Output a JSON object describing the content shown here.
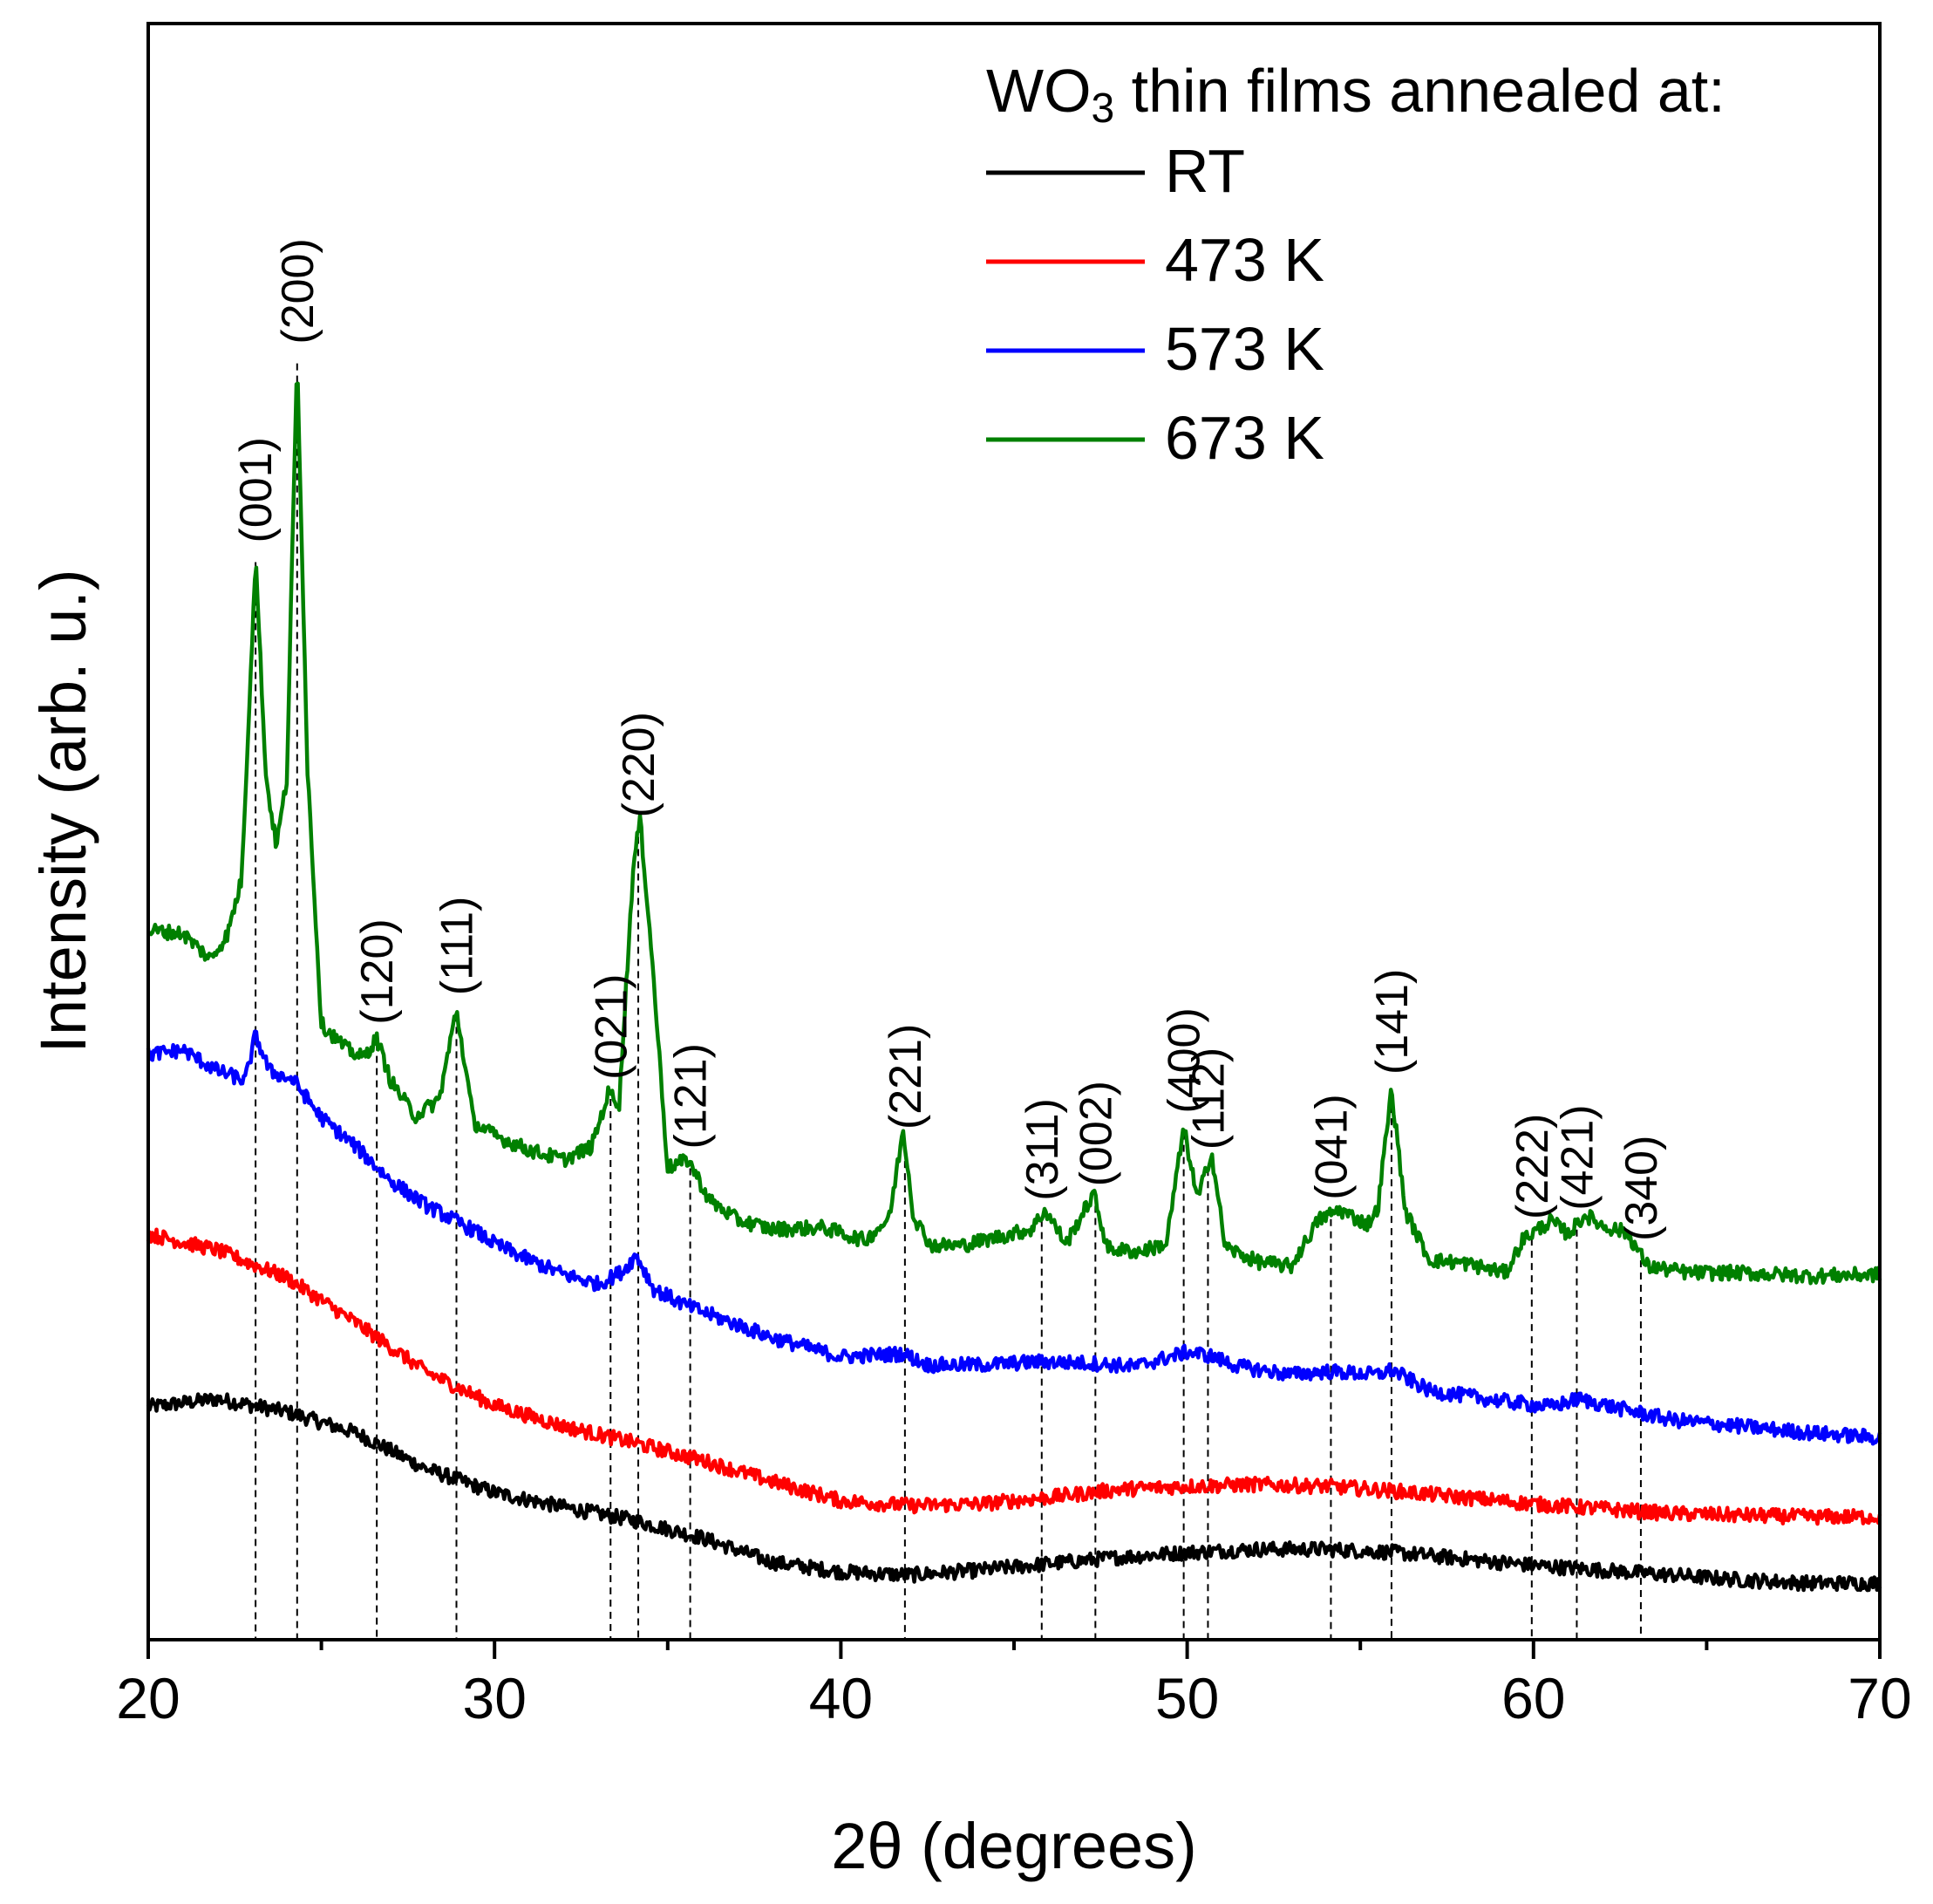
{
  "chart_data": {
    "type": "line",
    "title": "",
    "xlabel": "2θ (degrees)",
    "ylabel": "Intensity (arb. u.)",
    "xlim": [
      20,
      70
    ],
    "ylim": [
      0,
      100
    ],
    "x_ticks": [
      20,
      30,
      40,
      50,
      60,
      70
    ],
    "x_tick_labels": [
      "20",
      "30",
      "40",
      "50",
      "60",
      "70"
    ],
    "y_ticks_shown": false,
    "legend": {
      "title_main": "WO",
      "title_sub": "3",
      "title_rest": " thin films annealed at:",
      "position": "top-right"
    },
    "series": [
      {
        "name": "RT",
        "color": "#000000",
        "points": [
          [
            20,
            14.4
          ],
          [
            22,
            14.9
          ],
          [
            24,
            14.1
          ],
          [
            26,
            12.8
          ],
          [
            28,
            10.6
          ],
          [
            30,
            9.1
          ],
          [
            32,
            8.2
          ],
          [
            34,
            7.4
          ],
          [
            36,
            6.3
          ],
          [
            38,
            4.8
          ],
          [
            40,
            4.2
          ],
          [
            42,
            4.0
          ],
          [
            44,
            4.3
          ],
          [
            46,
            4.7
          ],
          [
            48,
            5.1
          ],
          [
            50,
            5.4
          ],
          [
            52,
            5.6
          ],
          [
            54,
            5.6
          ],
          [
            56,
            5.4
          ],
          [
            58,
            5.0
          ],
          [
            60,
            4.6
          ],
          [
            62,
            4.3
          ],
          [
            64,
            4.0
          ],
          [
            66,
            3.7
          ],
          [
            68,
            3.5
          ],
          [
            70,
            3.5
          ]
        ]
      },
      {
        "name": "473 K",
        "color": "#ff0000",
        "points": [
          [
            20,
            25.1
          ],
          [
            22,
            24.1
          ],
          [
            24,
            22.4
          ],
          [
            26,
            19.6
          ],
          [
            28,
            16.6
          ],
          [
            30,
            14.5
          ],
          [
            32,
            13.2
          ],
          [
            34,
            12.2
          ],
          [
            36,
            11.1
          ],
          [
            38,
            9.8
          ],
          [
            40,
            8.6
          ],
          [
            42,
            8.3
          ],
          [
            44,
            8.4
          ],
          [
            46,
            8.8
          ],
          [
            48,
            9.3
          ],
          [
            50,
            9.5
          ],
          [
            52,
            9.6
          ],
          [
            54,
            9.5
          ],
          [
            56,
            9.2
          ],
          [
            58,
            8.8
          ],
          [
            60,
            8.4
          ],
          [
            62,
            8.1
          ],
          [
            64,
            7.8
          ],
          [
            66,
            7.7
          ],
          [
            68,
            7.6
          ],
          [
            70,
            7.6
          ]
        ]
      },
      {
        "name": "573 K",
        "color": "#0000ff",
        "points": [
          [
            20,
            36.2
          ],
          [
            21,
            36.5
          ],
          [
            22,
            35.2
          ],
          [
            22.8,
            34.6
          ],
          [
            23.1,
            37.4
          ],
          [
            23.5,
            35.2
          ],
          [
            24.2,
            34.6
          ],
          [
            25,
            32.3
          ],
          [
            26,
            30.5
          ],
          [
            27,
            28.4
          ],
          [
            28,
            26.9
          ],
          [
            28.8,
            26.0
          ],
          [
            29.5,
            25.2
          ],
          [
            30,
            24.5
          ],
          [
            31,
            23.5
          ],
          [
            32,
            22.6
          ],
          [
            33,
            22.0
          ],
          [
            33.7,
            22.8
          ],
          [
            34.1,
            23.8
          ],
          [
            34.6,
            21.7
          ],
          [
            35.5,
            20.7
          ],
          [
            36.5,
            19.9
          ],
          [
            38,
            18.7
          ],
          [
            40,
            17.5
          ],
          [
            41.8,
            17.7
          ],
          [
            42.5,
            17.0
          ],
          [
            44,
            17.0
          ],
          [
            45.8,
            17.2
          ],
          [
            47.3,
            17.1
          ],
          [
            48.5,
            16.9
          ],
          [
            50,
            17.8
          ],
          [
            50.6,
            17.6
          ],
          [
            51.5,
            16.9
          ],
          [
            53,
            16.4
          ],
          [
            54,
            16.6
          ],
          [
            55.5,
            16.4
          ],
          [
            55.9,
            16.7
          ],
          [
            57,
            15.4
          ],
          [
            59,
            14.8
          ],
          [
            60.5,
            14.4
          ],
          [
            61.3,
            14.9
          ],
          [
            62.5,
            14.3
          ],
          [
            64,
            13.6
          ],
          [
            66,
            13.2
          ],
          [
            68,
            12.8
          ],
          [
            70,
            12.5
          ]
        ]
      },
      {
        "name": "673 K",
        "color": "#008000",
        "points": [
          [
            20,
            43.9
          ],
          [
            21,
            43.7
          ],
          [
            21.8,
            42.1
          ],
          [
            22.3,
            43.7
          ],
          [
            22.7,
            47.1
          ],
          [
            23.1,
            67.0
          ],
          [
            23.4,
            53.4
          ],
          [
            23.7,
            49.1
          ],
          [
            24.0,
            53.2
          ],
          [
            24.3,
            79.3
          ],
          [
            24.6,
            53.9
          ],
          [
            25.0,
            38.1
          ],
          [
            25.7,
            36.6
          ],
          [
            26.2,
            36.0
          ],
          [
            26.6,
            37.2
          ],
          [
            27.0,
            34.6
          ],
          [
            27.7,
            32.4
          ],
          [
            28.4,
            33.4
          ],
          [
            28.9,
            39.0
          ],
          [
            29.4,
            32.0
          ],
          [
            30,
            31.2
          ],
          [
            31,
            30.3
          ],
          [
            32,
            29.7
          ],
          [
            32.8,
            30.5
          ],
          [
            33.3,
            33.9
          ],
          [
            33.6,
            33.2
          ],
          [
            34.0,
            47.6
          ],
          [
            34.2,
            50.8
          ],
          [
            34.5,
            43.5
          ],
          [
            35.0,
            29.2
          ],
          [
            35.6,
            29.7
          ],
          [
            36.2,
            27.2
          ],
          [
            37,
            26.0
          ],
          [
            38,
            25.4
          ],
          [
            39.5,
            25.5
          ],
          [
            40.7,
            24.7
          ],
          [
            41.4,
            26.1
          ],
          [
            41.8,
            31.6
          ],
          [
            42.1,
            26.2
          ],
          [
            42.6,
            24.4
          ],
          [
            43.5,
            24.4
          ],
          [
            44.5,
            24.9
          ],
          [
            45.5,
            25.4
          ],
          [
            45.9,
            26.6
          ],
          [
            46.5,
            24.5
          ],
          [
            47.3,
            27.6
          ],
          [
            47.7,
            24.2
          ],
          [
            48.6,
            24.0
          ],
          [
            49.4,
            24.5
          ],
          [
            49.9,
            31.7
          ],
          [
            50.3,
            27.2
          ],
          [
            50.7,
            30.2
          ],
          [
            51.1,
            24.3
          ],
          [
            52.0,
            23.4
          ],
          [
            53.0,
            23.1
          ],
          [
            53.8,
            26.0
          ],
          [
            54.4,
            26.6
          ],
          [
            55.2,
            25.7
          ],
          [
            55.5,
            26.6
          ],
          [
            55.9,
            34.1
          ],
          [
            56.3,
            26.5
          ],
          [
            57.0,
            23.5
          ],
          [
            58.0,
            23.3
          ],
          [
            59.2,
            22.7
          ],
          [
            59.7,
            24.8
          ],
          [
            60.5,
            25.9
          ],
          [
            61.0,
            25.1
          ],
          [
            61.5,
            26.3
          ],
          [
            62.0,
            25.6
          ],
          [
            62.7,
            25.2
          ],
          [
            63.3,
            23.1
          ],
          [
            64.5,
            22.7
          ],
          [
            66,
            22.7
          ],
          [
            68,
            22.5
          ],
          [
            70,
            22.6
          ]
        ]
      }
    ],
    "reflections": [
      {
        "label": "(001)",
        "x": 23.1
      },
      {
        "label": "(200)",
        "x": 24.3
      },
      {
        "label": "(120)",
        "x": 26.6
      },
      {
        "label": "(111)",
        "x": 28.9
      },
      {
        "label": "(021)",
        "x": 33.35
      },
      {
        "label": "(220)",
        "x": 34.15
      },
      {
        "label": "(121)",
        "x": 35.65
      },
      {
        "label": "(221)",
        "x": 41.85
      },
      {
        "label": "(311)",
        "x": 45.8
      },
      {
        "label": "(002)",
        "x": 47.35
      },
      {
        "label": "(400)",
        "x": 49.9
      },
      {
        "label": "(112)",
        "x": 50.6
      },
      {
        "label": "(041)",
        "x": 54.15
      },
      {
        "label": "(141)",
        "x": 55.9
      },
      {
        "label": "(222)",
        "x": 59.95
      },
      {
        "label": "(421)",
        "x": 61.25
      },
      {
        "label": "(340)",
        "x": 63.1
      }
    ]
  }
}
